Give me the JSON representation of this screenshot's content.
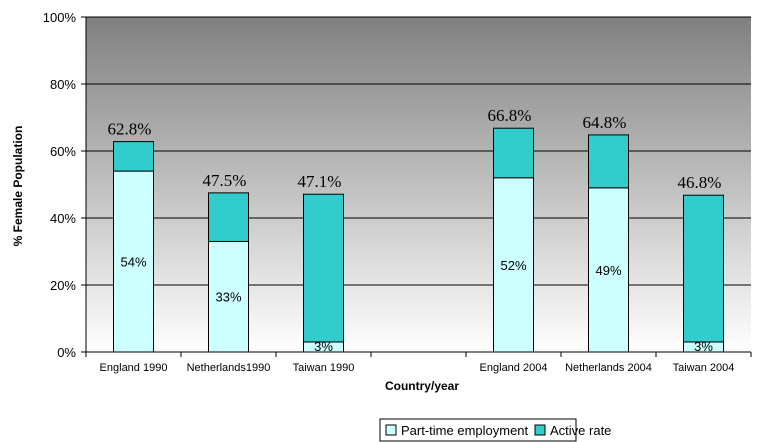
{
  "chart_data": {
    "type": "bar",
    "stacked": true,
    "categories": [
      "England 1990",
      "Netherlands1990",
      "Taiwan 1990",
      "",
      "England 2004",
      "Netherlands 2004",
      "Taiwan 2004"
    ],
    "series": [
      {
        "name": "Part-time employment",
        "values": [
          54,
          33,
          3,
          null,
          52,
          49,
          3
        ],
        "labels": [
          "54%",
          "33%",
          "3%",
          "",
          "52%",
          "49%",
          "3%"
        ],
        "color": "#ccffff"
      },
      {
        "name": "Active rate",
        "values": [
          8.8,
          14.5,
          44.1,
          null,
          14.8,
          15.8,
          43.8
        ],
        "color": "#33cccc"
      }
    ],
    "totals": [
      62.8,
      47.5,
      47.1,
      null,
      66.8,
      64.8,
      46.8
    ],
    "total_labels": [
      "62.8%",
      "47.5%",
      "47.1%",
      "",
      "66.8%",
      "64.8%",
      "46.8%"
    ],
    "ylabel": "% Female Population",
    "xlabel": "Country/year",
    "ylim": [
      0,
      100
    ],
    "yticks": [
      "0%",
      "20%",
      "40%",
      "60%",
      "80%",
      "100%"
    ],
    "ytick_values": [
      0,
      20,
      40,
      60,
      80,
      100
    ],
    "grid": true,
    "legend_position": "bottom-center",
    "colors": {
      "plot_top": "#808080",
      "plot_bottom": "#ffffff",
      "bar_border": "#000000"
    }
  }
}
